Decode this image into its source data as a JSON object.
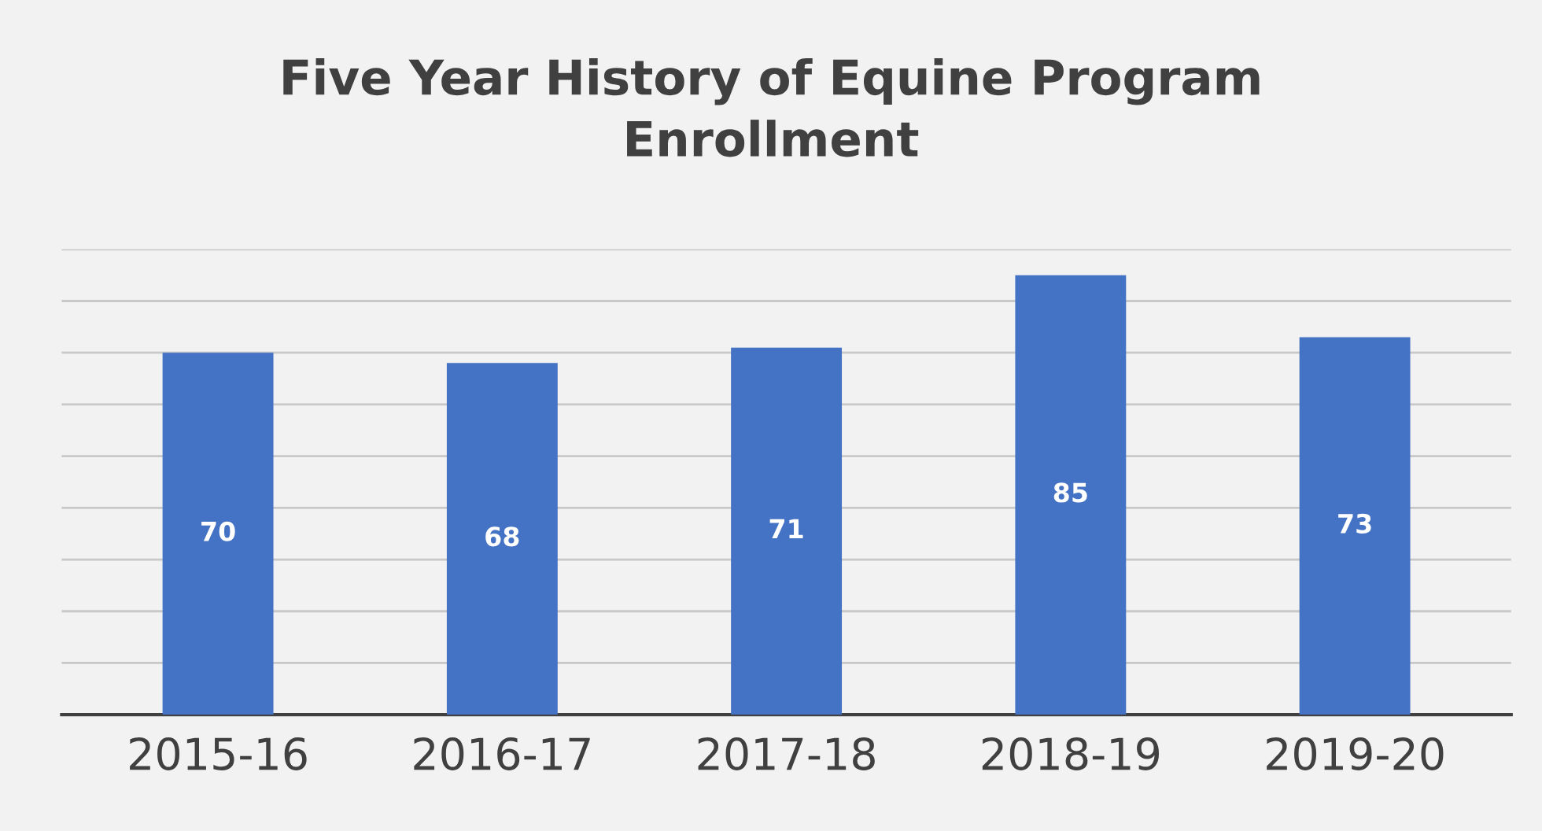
{
  "chart_data": {
    "type": "bar",
    "title": "Five Year History of Equine Program\nEnrollment",
    "categories": [
      "2015-16",
      "2016-17",
      "2017-18",
      "2018-19",
      "2019-20"
    ],
    "values": [
      70,
      68,
      71,
      85,
      73
    ],
    "color": "#4472c4",
    "ylim": [
      0,
      90
    ],
    "yticks": [
      {
        "value": 0,
        "label": null
      },
      {
        "value": 10,
        "label": null
      },
      {
        "value": 20,
        "label": null
      },
      {
        "value": 30,
        "label": null
      },
      {
        "value": 40,
        "label": null
      },
      {
        "value": 50,
        "label": null
      },
      {
        "value": 60,
        "label": null
      },
      {
        "value": 70,
        "label": null
      },
      {
        "value": 80,
        "label": null
      },
      {
        "value": 90,
        "label": null
      }
    ],
    "tick_labels": "x",
    "grid": "y",
    "data_labels": true,
    "legend": false
  }
}
